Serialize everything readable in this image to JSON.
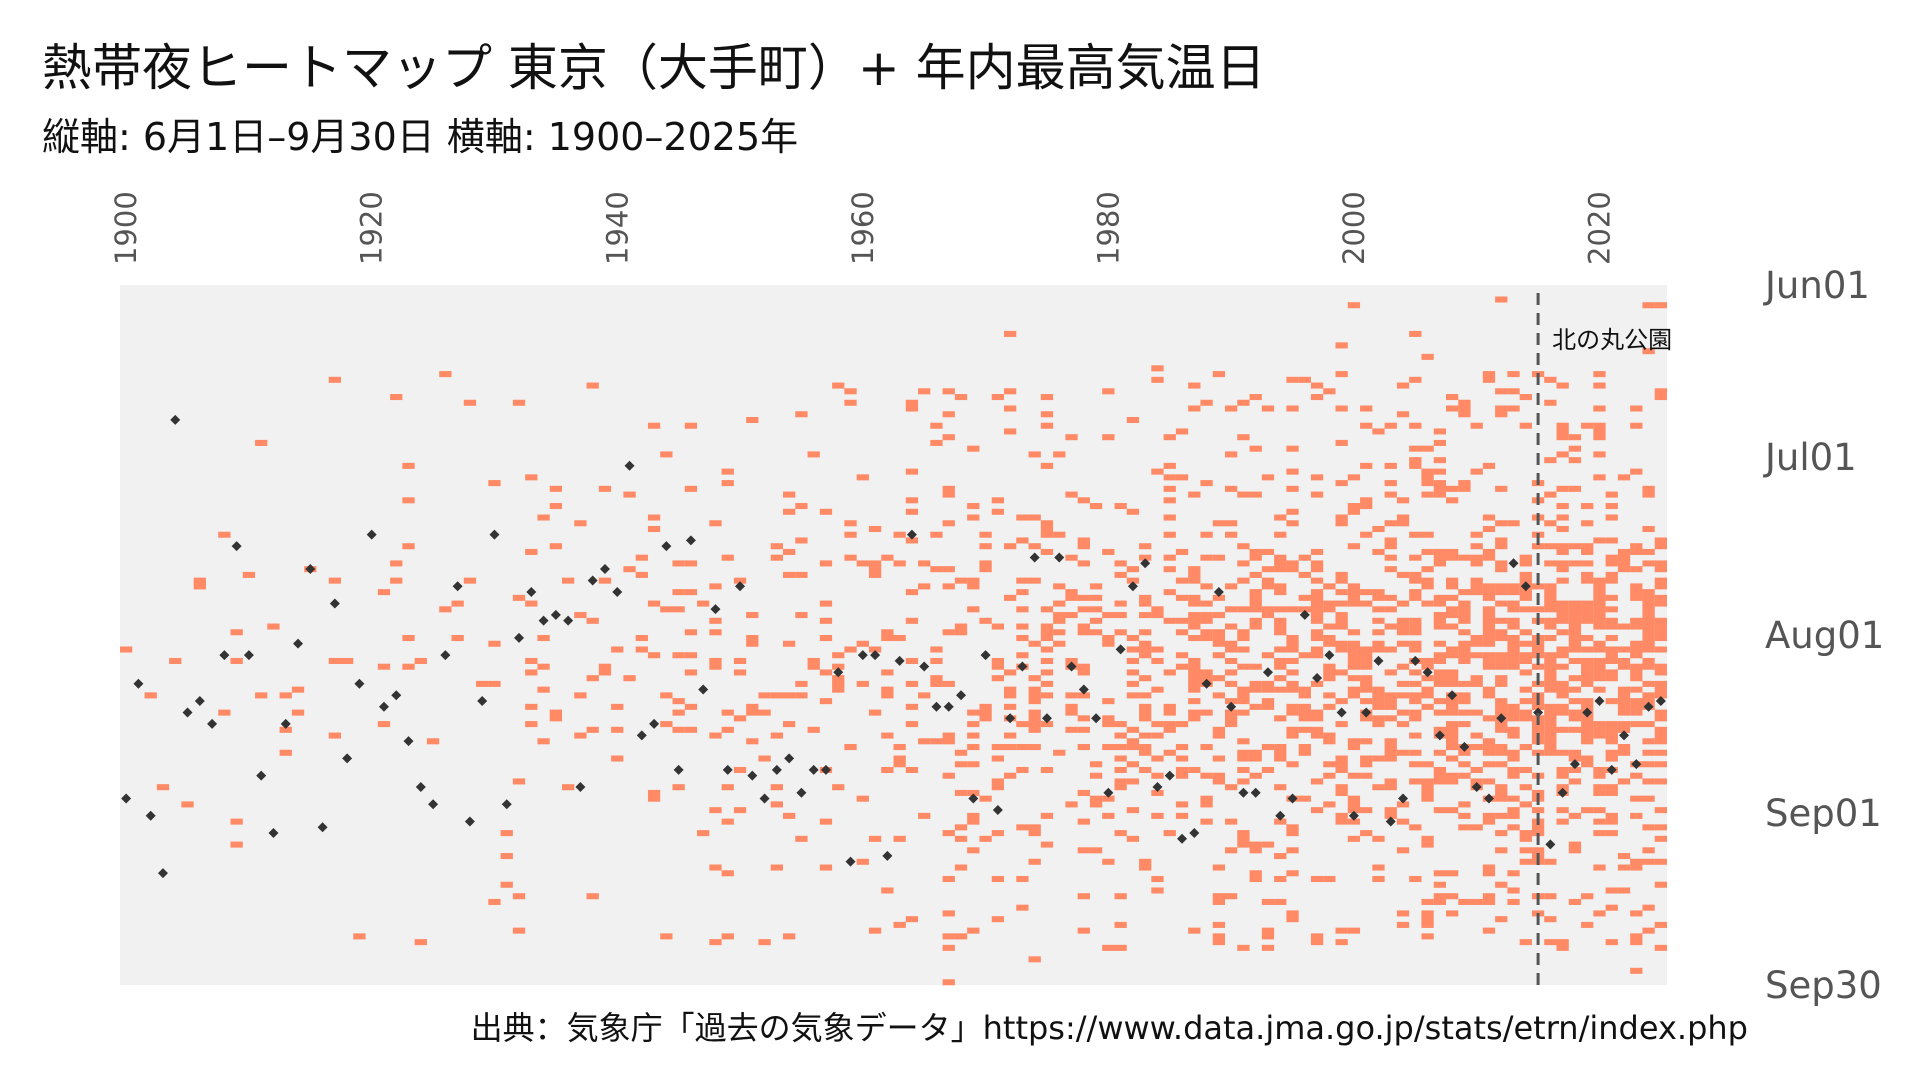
{
  "title": "熱帯夜ヒートマップ 東京（大手町）+ 年内最高気温日",
  "subtitle": "縦軸: 6月1日–9月30日 横軸: 1900–2025年",
  "source": "出典：気象庁「過去の気象データ」https://www.data.jma.go.jp/stats/etrn/index.php",
  "colors": {
    "panel_bg": "#f1f1f1",
    "tropical_night": "#ff8a65",
    "max_temp_marker": "#333333",
    "vline": "#555555"
  },
  "chart_data": {
    "type": "heatmap",
    "title": "熱帯夜ヒートマップ 東京（大手町）+ 年内最高気温日",
    "subtitle": "縦軸: 6月1日–9月30日 横軸: 1900–2025年",
    "x_range": [
      1900,
      2025
    ],
    "y_range": [
      "06-01",
      "09-30"
    ],
    "x_ticks": [
      "1900",
      "1920",
      "1940",
      "1960",
      "1980",
      "2000",
      "2020"
    ],
    "x_tick_position": "top, rotated 90°",
    "y_ticks": [
      "Jun01",
      "Jul01",
      "Aug01",
      "Sep01",
      "Sep30"
    ],
    "y_tick_position": "right",
    "grid": false,
    "annotations": [
      {
        "type": "vline",
        "x": 2015,
        "label": "北の丸公園",
        "style": "dashed"
      }
    ],
    "series": [
      {
        "kind": "cells",
        "description": "tropical nights (min temp ≥ 25°C)",
        "color": "#ff8a65"
      },
      {
        "kind": "points",
        "marker": "diamond",
        "description": "annual max temperature day",
        "color": "#333333"
      }
    ],
    "max_temp_days": [
      [
        1900,
        "08-29"
      ],
      [
        1901,
        "08-09"
      ],
      [
        1902,
        "09-01"
      ],
      [
        1903,
        "09-11"
      ],
      [
        1904,
        "06-24"
      ],
      [
        1905,
        "08-14"
      ],
      [
        1906,
        "08-12"
      ],
      [
        1907,
        "08-16"
      ],
      [
        1908,
        "08-04"
      ],
      [
        1909,
        "07-16"
      ],
      [
        1910,
        "08-04"
      ],
      [
        1911,
        "08-25"
      ],
      [
        1912,
        "09-04"
      ],
      [
        1913,
        "08-16"
      ],
      [
        1914,
        "08-02"
      ],
      [
        1915,
        "07-20"
      ],
      [
        1916,
        "09-03"
      ],
      [
        1917,
        "07-26"
      ],
      [
        1918,
        "08-22"
      ],
      [
        1919,
        "08-09"
      ],
      [
        1920,
        "07-14"
      ],
      [
        1921,
        "08-13"
      ],
      [
        1922,
        "08-11"
      ],
      [
        1923,
        "08-19"
      ],
      [
        1924,
        "08-27"
      ],
      [
        1925,
        "08-30"
      ],
      [
        1926,
        "08-04"
      ],
      [
        1927,
        "07-23"
      ],
      [
        1928,
        "09-02"
      ],
      [
        1929,
        "08-12"
      ],
      [
        1930,
        "07-14"
      ],
      [
        1931,
        "08-30"
      ],
      [
        1932,
        "08-01"
      ],
      [
        1933,
        "07-24"
      ],
      [
        1934,
        "07-29"
      ],
      [
        1935,
        "07-28"
      ],
      [
        1936,
        "07-29"
      ],
      [
        1937,
        "08-27"
      ],
      [
        1938,
        "07-22"
      ],
      [
        1939,
        "07-20"
      ],
      [
        1940,
        "07-24"
      ],
      [
        1941,
        "07-02"
      ],
      [
        1942,
        "08-18"
      ],
      [
        1943,
        "08-16"
      ],
      [
        1944,
        "07-16"
      ],
      [
        1945,
        "08-24"
      ],
      [
        1946,
        "07-15"
      ],
      [
        1947,
        "08-10"
      ],
      [
        1948,
        "07-27"
      ],
      [
        1949,
        "08-24"
      ],
      [
        1950,
        "07-23"
      ],
      [
        1951,
        "08-25"
      ],
      [
        1952,
        "08-29"
      ],
      [
        1953,
        "08-24"
      ],
      [
        1954,
        "08-22"
      ],
      [
        1955,
        "08-28"
      ],
      [
        1956,
        "08-24"
      ],
      [
        1957,
        "08-24"
      ],
      [
        1958,
        "08-07"
      ],
      [
        1959,
        "09-09"
      ],
      [
        1960,
        "08-04"
      ],
      [
        1961,
        "08-04"
      ],
      [
        1962,
        "09-08"
      ],
      [
        1963,
        "08-05"
      ],
      [
        1964,
        "07-14"
      ],
      [
        1965,
        "08-06"
      ],
      [
        1966,
        "08-13"
      ],
      [
        1967,
        "08-13"
      ],
      [
        1968,
        "08-11"
      ],
      [
        1969,
        "08-29"
      ],
      [
        1970,
        "08-04"
      ],
      [
        1971,
        "08-31"
      ],
      [
        1972,
        "08-15"
      ],
      [
        1973,
        "08-06"
      ],
      [
        1974,
        "07-18"
      ],
      [
        1975,
        "08-15"
      ],
      [
        1976,
        "07-18"
      ],
      [
        1977,
        "08-06"
      ],
      [
        1978,
        "08-10"
      ],
      [
        1979,
        "08-15"
      ],
      [
        1980,
        "08-28"
      ],
      [
        1981,
        "08-03"
      ],
      [
        1982,
        "07-23"
      ],
      [
        1983,
        "07-19"
      ],
      [
        1984,
        "08-27"
      ],
      [
        1985,
        "08-25"
      ],
      [
        1986,
        "09-05"
      ],
      [
        1987,
        "09-04"
      ],
      [
        1988,
        "08-09"
      ],
      [
        1989,
        "07-24"
      ],
      [
        1990,
        "08-13"
      ],
      [
        1991,
        "08-28"
      ],
      [
        1992,
        "08-28"
      ],
      [
        1993,
        "08-07"
      ],
      [
        1994,
        "09-01"
      ],
      [
        1995,
        "08-29"
      ],
      [
        1996,
        "07-28"
      ],
      [
        1997,
        "08-08"
      ],
      [
        1998,
        "08-04"
      ],
      [
        1999,
        "08-14"
      ],
      [
        2000,
        "09-01"
      ],
      [
        2001,
        "08-14"
      ],
      [
        2002,
        "08-05"
      ],
      [
        2003,
        "09-02"
      ],
      [
        2004,
        "08-29"
      ],
      [
        2005,
        "08-05"
      ],
      [
        2006,
        "08-07"
      ],
      [
        2007,
        "08-18"
      ],
      [
        2008,
        "08-11"
      ],
      [
        2009,
        "08-20"
      ],
      [
        2010,
        "08-27"
      ],
      [
        2011,
        "08-29"
      ],
      [
        2012,
        "08-15"
      ],
      [
        2013,
        "07-19"
      ],
      [
        2014,
        "07-23"
      ],
      [
        2015,
        "08-14"
      ],
      [
        2016,
        "09-06"
      ],
      [
        2017,
        "08-28"
      ],
      [
        2018,
        "08-23"
      ],
      [
        2019,
        "08-14"
      ],
      [
        2020,
        "08-12"
      ],
      [
        2021,
        "08-24"
      ],
      [
        2022,
        "08-18"
      ],
      [
        2023,
        "08-23"
      ],
      [
        2024,
        "08-13"
      ],
      [
        2025,
        "08-12"
      ]
    ]
  }
}
